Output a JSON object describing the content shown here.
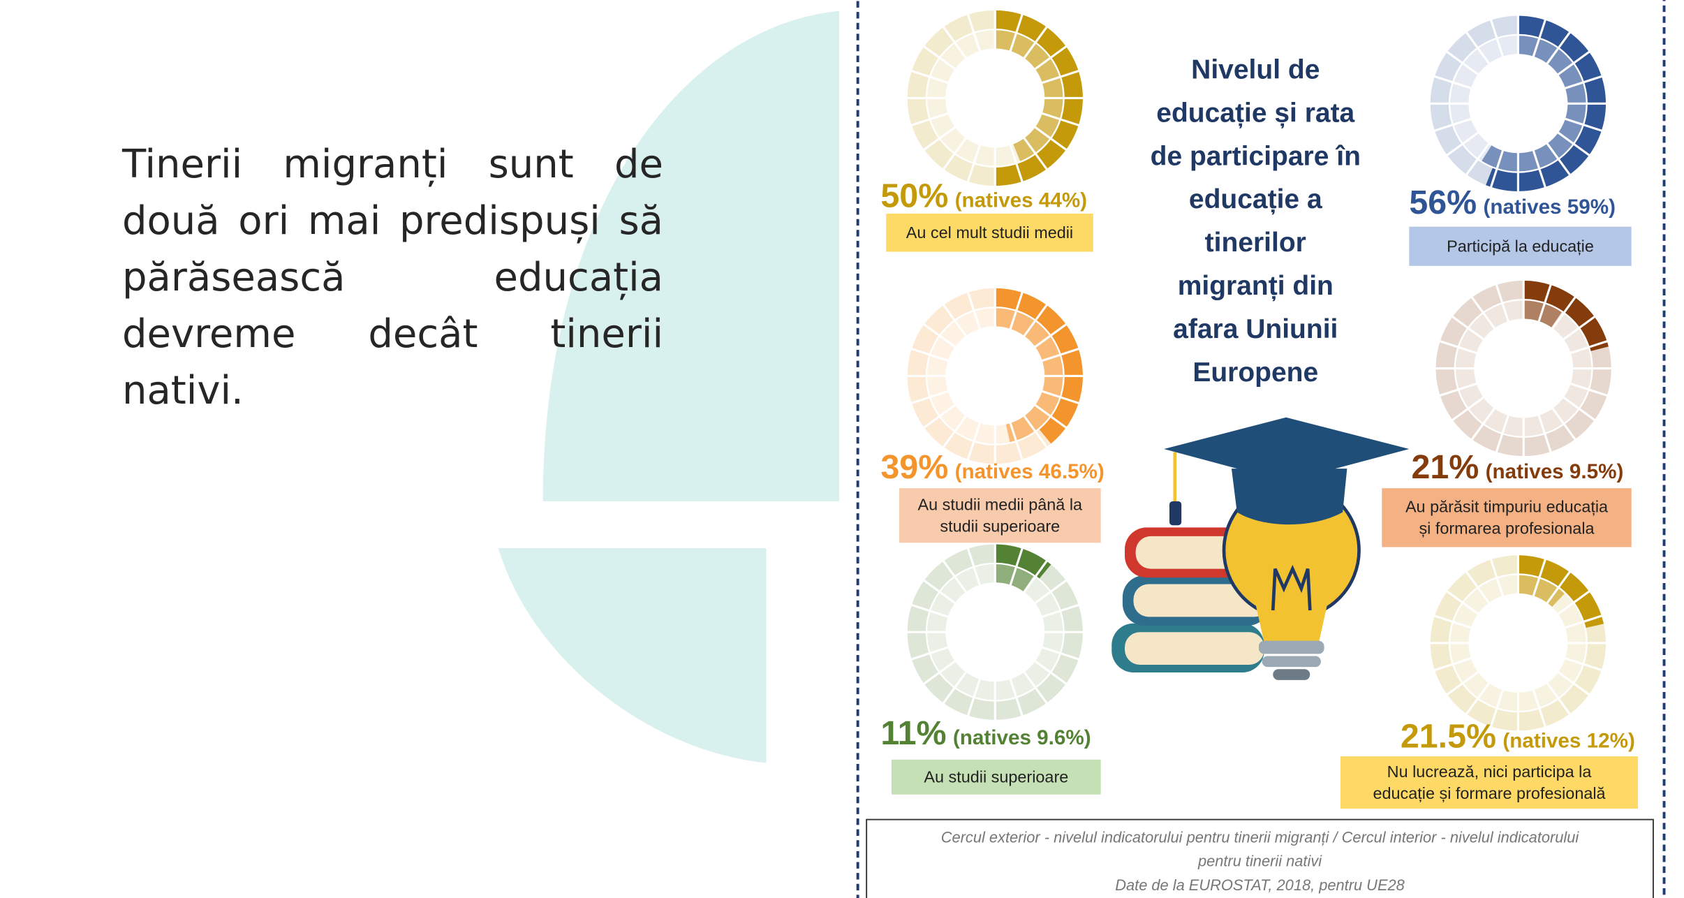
{
  "text": "Tinerii migranți sunt de două ori mai predispuși să părăsească educația devreme decât tinerii nativi.",
  "title_lines": [
    "Nivelul de",
    "educație și rata",
    "de participare în",
    "educație a",
    "tinerilor",
    "migranți din",
    "afara Uniunii",
    "Europene"
  ],
  "footnote_lines": [
    "Cercul exterior - nivelul indicatorului  pentru tinerii migranți / Cercul interior - nivelul  indicatorului",
    "pentru tinerii nativi",
    "Date de la EUROSTAT, 2018, pentru UE28"
  ],
  "chart_data": [
    {
      "type": "donut",
      "values": [
        50,
        44
      ],
      "value_labels": [
        "50%",
        "(natives 44%)"
      ],
      "label_lines": [
        "Au cel mult studii medii"
      ],
      "color": "#c49a0a",
      "box_color": "#fdd966"
    },
    {
      "type": "donut",
      "values": [
        56,
        59
      ],
      "value_labels": [
        "56%",
        "(natives 59%)"
      ],
      "label_lines": [
        "Participă la educație"
      ],
      "color": "#2f5597",
      "box_color": "#b4c7e7"
    },
    {
      "type": "donut",
      "values": [
        39,
        46.5
      ],
      "value_labels": [
        "39%",
        "(natives 46.5%)"
      ],
      "label_lines": [
        "Au studii medii până la",
        "studii superioare"
      ],
      "color": "#f4942c",
      "box_color": "#f8cbad"
    },
    {
      "type": "donut",
      "values": [
        21,
        9.5
      ],
      "value_labels": [
        "21%",
        "(natives 9.5%)"
      ],
      "label_lines": [
        "Au părăsit timpuriu educația",
        "și formarea profesionala"
      ],
      "color": "#843c0c",
      "box_color": "#f4b183"
    },
    {
      "type": "donut",
      "values": [
        11,
        9.6
      ],
      "value_labels": [
        "11%",
        "(natives 9.6%)"
      ],
      "label_lines": [
        "Au studii superioare"
      ],
      "color": "#548235",
      "box_color": "#c5e0b4"
    },
    {
      "type": "donut",
      "values": [
        21.5,
        12
      ],
      "value_labels": [
        "21.5%",
        "(natives 12%)"
      ],
      "label_lines": [
        "Nu lucrează, nici participa la",
        "educație și formare profesională"
      ],
      "color": "#c49a0a",
      "box_color": "#ffd966"
    }
  ]
}
